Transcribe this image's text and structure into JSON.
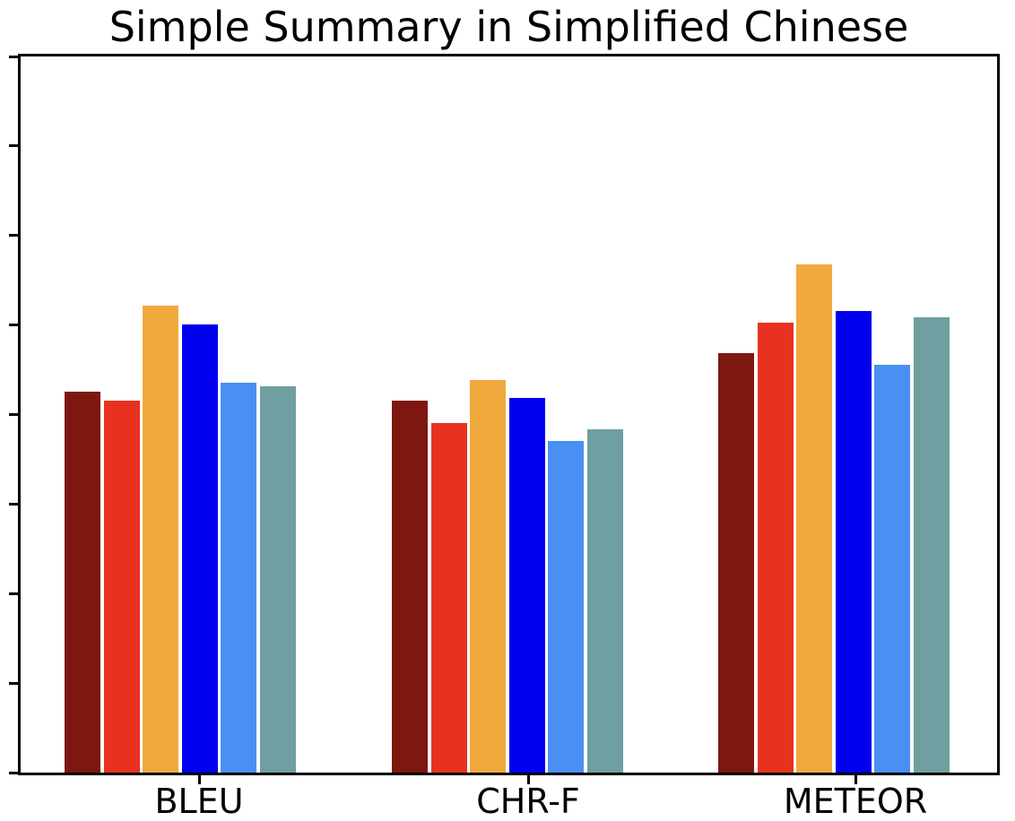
{
  "title": "Simple Summary in Simplified Chinese",
  "chart_data": {
    "type": "bar",
    "title": "Simple Summary in Simplified Chinese",
    "categories": [
      "BLEU",
      "CHR-F",
      "METEOR"
    ],
    "series": [
      {
        "name": "dark-red",
        "color": "#7E1710",
        "values": [
          0.532,
          0.519,
          0.586
        ]
      },
      {
        "name": "red",
        "color": "#E8321F",
        "values": [
          0.519,
          0.488,
          0.628
        ]
      },
      {
        "name": "orange",
        "color": "#F0A93C",
        "values": [
          0.652,
          0.548,
          0.71
        ]
      },
      {
        "name": "blue",
        "color": "#0000EE",
        "values": [
          0.626,
          0.523,
          0.645
        ]
      },
      {
        "name": "cornflower-blue",
        "color": "#4A90F2",
        "values": [
          0.544,
          0.463,
          0.569
        ]
      },
      {
        "name": "cadet-teal",
        "color": "#6F9FA0",
        "values": [
          0.539,
          0.479,
          0.636
        ]
      }
    ],
    "xlabel": "",
    "ylabel": "",
    "y_axis": {
      "labels_visible": false,
      "tick_count": 9,
      "range_normalized": [
        0,
        1
      ]
    },
    "x_axis": {
      "tick_labels": [
        "BLEU",
        "CHR-F",
        "METEOR"
      ]
    },
    "legend": {
      "visible": false
    },
    "grid": false,
    "background_color": "#FFFFFF",
    "axis_color": "#000000"
  }
}
